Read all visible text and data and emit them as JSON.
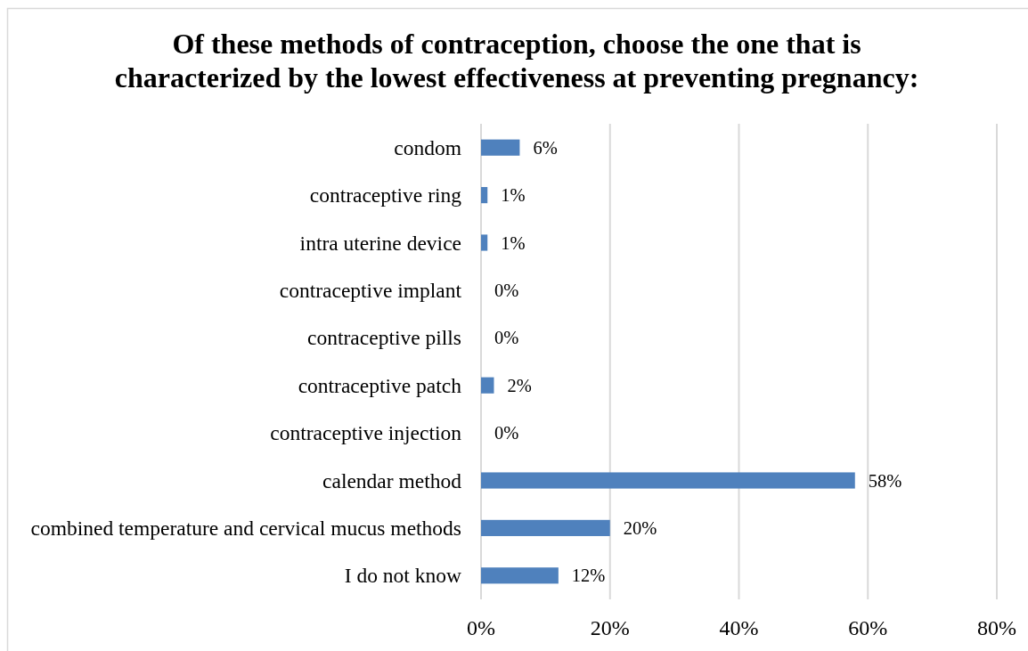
{
  "chart_data": {
    "type": "bar",
    "orientation": "horizontal",
    "title": "Of these methods of contraception, choose the one that is characterized by the lowest effectiveness at preventing pregnancy:",
    "categories": [
      "condom",
      "contraceptive ring",
      "intra uterine device",
      "contraceptive implant",
      "contraceptive pills",
      "contraceptive patch",
      "contraceptive injection",
      "calendar method",
      "combined temperature and cervical mucus methods",
      "I do not know"
    ],
    "values": [
      6,
      1,
      1,
      0,
      0,
      2,
      0,
      58,
      20,
      12
    ],
    "value_labels": [
      "6%",
      "1%",
      "1%",
      "0%",
      "0%",
      "2%",
      "0%",
      "58%",
      "20%",
      "12%"
    ],
    "color": "#4f81bd",
    "xlim": [
      0,
      80
    ],
    "xticks": [
      {
        "value": 0,
        "label": "0%"
      },
      {
        "value": 20,
        "label": "20%"
      },
      {
        "value": 40,
        "label": "40%"
      },
      {
        "value": 60,
        "label": "60%"
      },
      {
        "value": 80,
        "label": "80%"
      }
    ],
    "grid": "x"
  }
}
